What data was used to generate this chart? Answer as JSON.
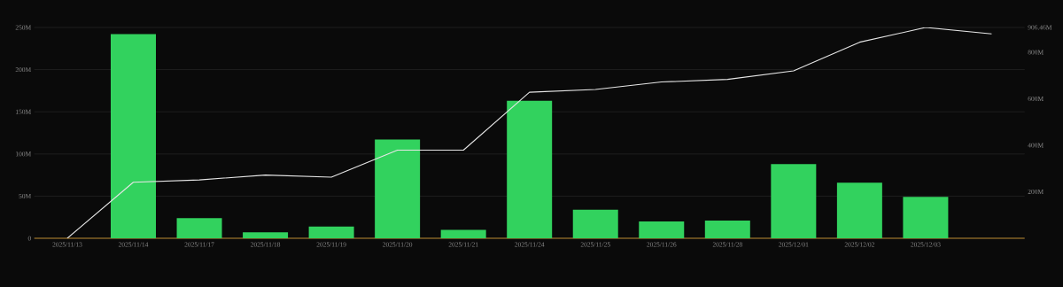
{
  "chart_data": {
    "type": "bar",
    "categories": [
      "2025/11/13",
      "2025/11/14",
      "2025/11/17",
      "2025/11/18",
      "2025/11/19",
      "2025/11/20",
      "2025/11/21",
      "2025/11/24",
      "2025/11/25",
      "2025/11/26",
      "2025/11/28",
      "2025/12/01",
      "2025/12/02",
      "2025/12/03",
      null
    ],
    "series": [
      {
        "color": "#32d25e",
        "values": [
          0,
          242,
          24,
          7,
          14,
          117,
          10,
          163,
          34,
          20,
          21,
          88,
          66,
          49,
          null
        ]
      },
      {
        "type": "line",
        "axis": "y2",
        "color": "#e6e6e6",
        "values": [
          0,
          241,
          251,
          272,
          263,
          379,
          379,
          628,
          640,
          672,
          683,
          720,
          843,
          906.46,
          879
        ]
      }
    ],
    "ylim": [
      0,
      250
    ],
    "yticks": [
      0,
      {
        "value": 50,
        "label": "50M"
      },
      {
        "value": 100,
        "label": "100M"
      },
      {
        "value": 150,
        "label": "150M"
      },
      {
        "value": 200,
        "label": "200M"
      },
      {
        "value": 250,
        "label": "250M"
      }
    ],
    "y2lim": [
      0,
      906.46
    ],
    "y2ticks": [
      {
        "value": 200,
        "label": "200M"
      },
      {
        "value": 400,
        "label": "400M"
      },
      {
        "value": 600,
        "label": "600M"
      },
      {
        "value": 800,
        "label": "800M"
      },
      {
        "value": 906.46,
        "label": "906.46M"
      }
    ],
    "grid": "y"
  }
}
